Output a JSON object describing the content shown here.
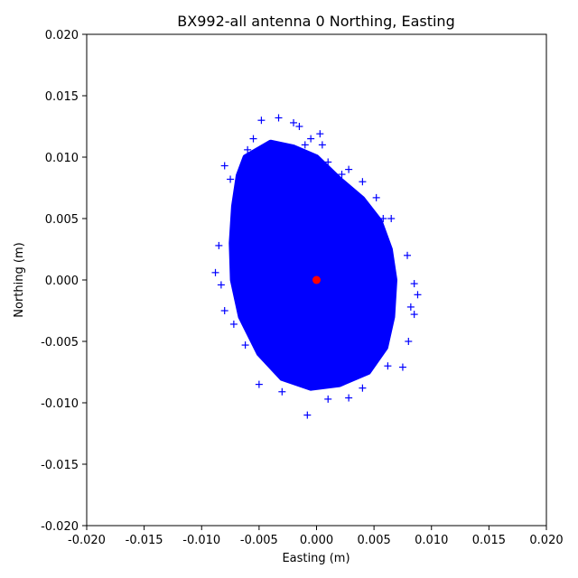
{
  "chart_data": {
    "type": "scatter",
    "title": "BX992-all antenna 0 Northing, Easting",
    "xlabel": "Easting (m)",
    "ylabel": "Northing (m)",
    "xlim": [
      -0.02,
      0.02
    ],
    "ylim": [
      -0.02,
      0.02
    ],
    "xticks": [
      "-0.020",
      "-0.015",
      "-0.010",
      "-0.005",
      "0.000",
      "0.005",
      "0.010",
      "0.015",
      "0.020"
    ],
    "yticks": [
      "-0.020",
      "-0.015",
      "-0.010",
      "-0.005",
      "0.000",
      "0.005",
      "0.010",
      "0.015",
      "0.020"
    ],
    "grid": false,
    "series": [
      {
        "marker": "plus",
        "color": "#0000ff",
        "points": [
          [
            -0.0048,
            0.013
          ],
          [
            -0.0033,
            0.0132
          ],
          [
            -0.002,
            0.0128
          ],
          [
            -0.0015,
            0.0125
          ],
          [
            -0.0005,
            0.0115
          ],
          [
            0.0003,
            0.0119
          ],
          [
            -0.006,
            0.0106
          ],
          [
            -0.008,
            0.0093
          ],
          [
            -0.0075,
            0.0082
          ],
          [
            -0.0085,
            0.0028
          ],
          [
            -0.0088,
            0.0006
          ],
          [
            -0.0083,
            -0.0004
          ],
          [
            -0.008,
            -0.0025
          ],
          [
            -0.0072,
            -0.0036
          ],
          [
            -0.0062,
            -0.0053
          ],
          [
            -0.005,
            -0.0085
          ],
          [
            -0.003,
            -0.0091
          ],
          [
            -0.0008,
            -0.011
          ],
          [
            0.001,
            -0.0097
          ],
          [
            0.0028,
            -0.0096
          ],
          [
            0.004,
            -0.0088
          ],
          [
            0.0062,
            -0.007
          ],
          [
            0.0075,
            -0.0071
          ],
          [
            0.008,
            -0.005
          ],
          [
            0.0085,
            -0.0028
          ],
          [
            0.0082,
            -0.0022
          ],
          [
            0.0088,
            -0.0012
          ],
          [
            0.0085,
            -0.0003
          ],
          [
            0.0079,
            0.002
          ],
          [
            0.0065,
            0.005
          ],
          [
            0.0058,
            0.005
          ],
          [
            0.0052,
            0.0067
          ],
          [
            0.004,
            0.008
          ],
          [
            0.0028,
            0.009
          ],
          [
            0.0022,
            0.0086
          ],
          [
            0.001,
            0.0096
          ],
          [
            -0.001,
            0.011
          ],
          [
            0.0005,
            0.011
          ],
          [
            -0.0055,
            0.0115
          ]
        ]
      },
      {
        "marker": "circle",
        "color": "#ff0000",
        "points": [
          [
            0.0,
            0.0
          ]
        ]
      }
    ]
  }
}
